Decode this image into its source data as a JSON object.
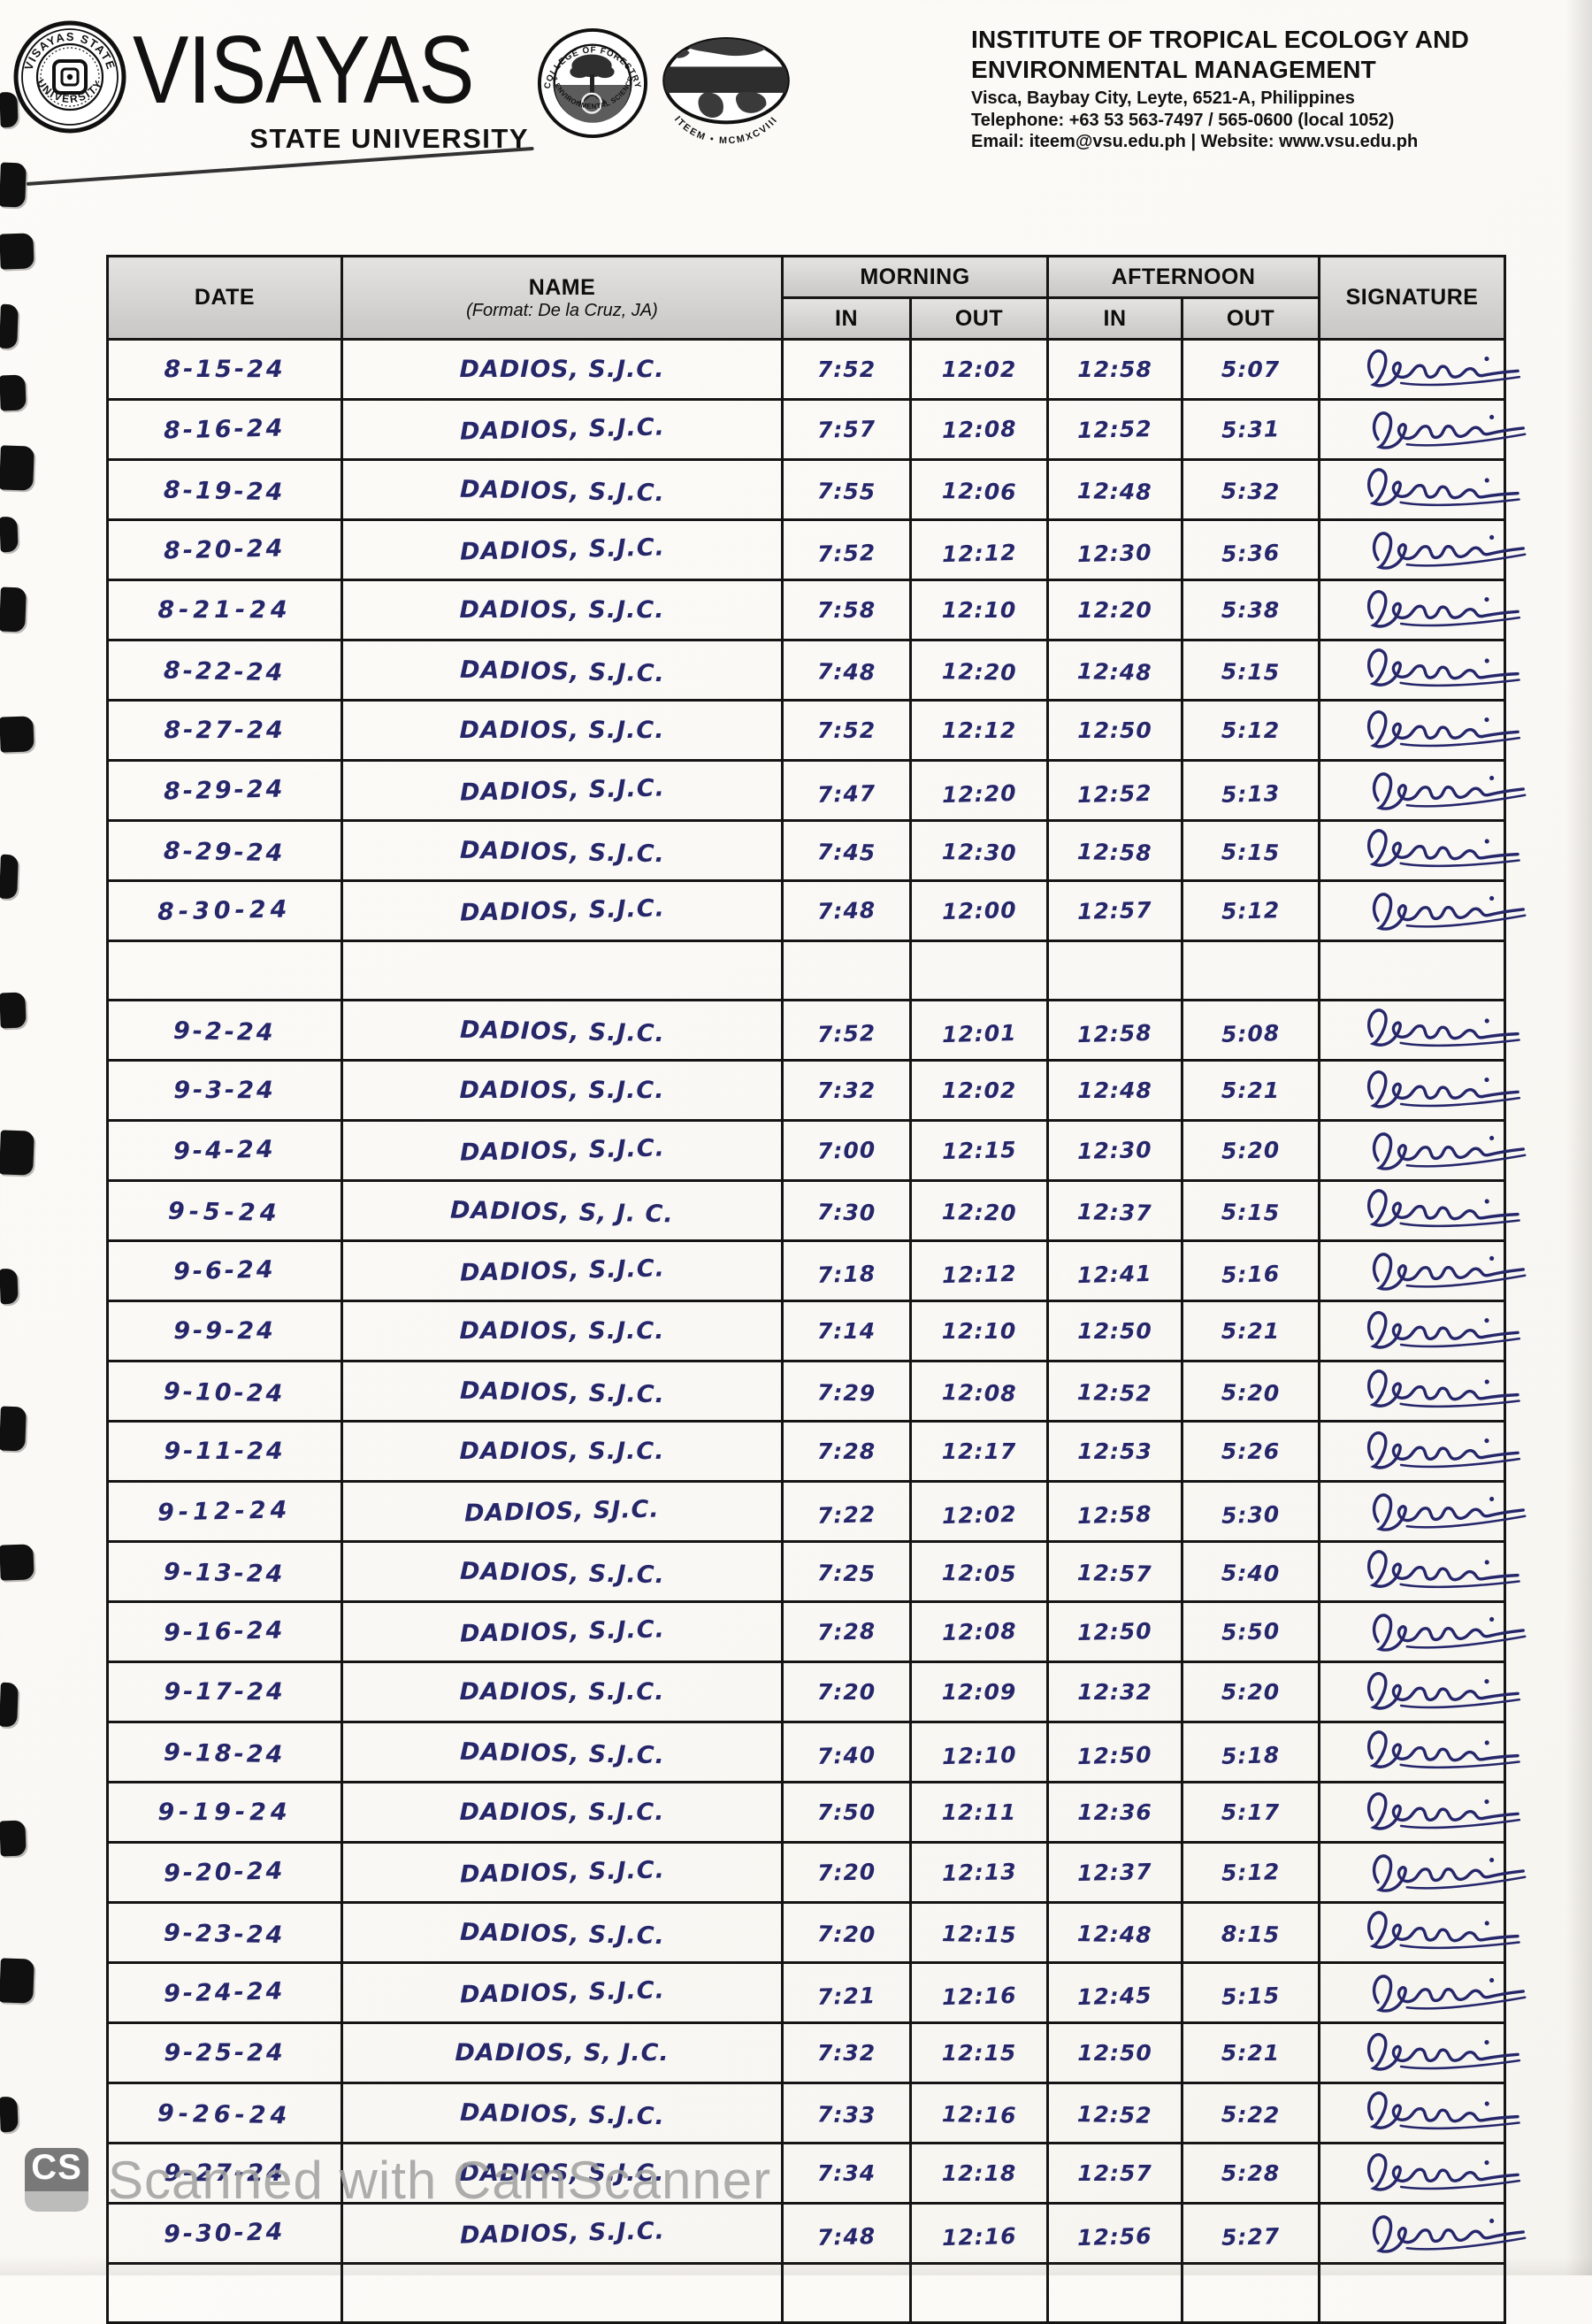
{
  "masthead": {
    "seal_top_text": "VISAYAS STATE",
    "seal_bottom_text": "UNIVERSITY",
    "wordmark_line1": "VISAYAS",
    "wordmark_line2": "STATE UNIVERSITY",
    "forestry_seal_top": "COLLEGE OF FORESTRY",
    "forestry_seal_bottom": "& ENVIRONMENTAL SCIENCE",
    "iteem_seal_caption": "ITEEM • MCMXCVIII",
    "institute_line1": "INSTITUTE OF TROPICAL ECOLOGY AND",
    "institute_line2": "ENVIRONMENTAL MANAGEMENT",
    "address": "Visca, Baybay City, Leyte, 6521-A, Philippines",
    "telephone": "Telephone: +63 53 563-7497 / 565-0600 (local 1052)",
    "email_website": "Email:  iteem@vsu.edu.ph | Website:  www.vsu.edu.ph"
  },
  "table": {
    "headers": {
      "date": "DATE",
      "name": "NAME",
      "name_format": "(Format:  De la Cruz, JA)",
      "morning": "MORNING",
      "afternoon": "AFTERNOON",
      "in": "IN",
      "out": "OUT",
      "signature": "SIGNATURE"
    },
    "rows": [
      {
        "date": "8-15-24",
        "name": "DADIOS, S.J.C.",
        "m_in": "7:52",
        "m_out": "12:02",
        "a_in": "12:58",
        "a_out": "5:07",
        "signed": true
      },
      {
        "date": "8-16-24",
        "name": "DADIOS, S.J.C.",
        "m_in": "7:57",
        "m_out": "12:08",
        "a_in": "12:52",
        "a_out": "5:31",
        "signed": true
      },
      {
        "date": "8-19-24",
        "name": "DADIOS, S.J.C.",
        "m_in": "7:55",
        "m_out": "12:06",
        "a_in": "12:48",
        "a_out": "5:32",
        "signed": true
      },
      {
        "date": "8-20-24",
        "name": "DADIOS, S.J.C.",
        "m_in": "7:52",
        "m_out": "12:12",
        "a_in": "12:30",
        "a_out": "5:36",
        "signed": true
      },
      {
        "date": "8-21-24",
        "name": "DADIOS, S.J.C.",
        "m_in": "7:58",
        "m_out": "12:10",
        "a_in": "12:20",
        "a_out": "5:38",
        "signed": true
      },
      {
        "date": "8-22-24",
        "name": "DADIOS, S.J.C.",
        "m_in": "7:48",
        "m_out": "12:20",
        "a_in": "12:48",
        "a_out": "5:15",
        "signed": true
      },
      {
        "date": "8-27-24",
        "name": "DADIOS, S.J.C.",
        "m_in": "7:52",
        "m_out": "12:12",
        "a_in": "12:50",
        "a_out": "5:12",
        "signed": true
      },
      {
        "date": "8-29-24",
        "name": "DADIOS, S.J.C.",
        "m_in": "7:47",
        "m_out": "12:20",
        "a_in": "12:52",
        "a_out": "5:13",
        "signed": true
      },
      {
        "date": "8-29-24",
        "name": "DADIOS, S.J.C.",
        "m_in": "7:45",
        "m_out": "12:30",
        "a_in": "12:58",
        "a_out": "5:15",
        "signed": true
      },
      {
        "date": "8-30-24",
        "name": "DADIOS, S.J.C.",
        "m_in": "7:48",
        "m_out": "12:00",
        "a_in": "12:57",
        "a_out": "5:12",
        "signed": true
      },
      {
        "date": "",
        "name": "",
        "m_in": "",
        "m_out": "",
        "a_in": "",
        "a_out": "",
        "signed": false
      },
      {
        "date": "9-2-24",
        "name": "DADIOS, S.J.C.",
        "m_in": "7:52",
        "m_out": "12:01",
        "a_in": "12:58",
        "a_out": "5:08",
        "signed": true
      },
      {
        "date": "9-3-24",
        "name": "DADIOS, S.J.C.",
        "m_in": "7:32",
        "m_out": "12:02",
        "a_in": "12:48",
        "a_out": "5:21",
        "signed": true
      },
      {
        "date": "9-4-24",
        "name": "DADIOS, S.J.C.",
        "m_in": "7:00",
        "m_out": "12:15",
        "a_in": "12:30",
        "a_out": "5:20",
        "signed": true
      },
      {
        "date": "9-5-24",
        "name": "DADIOS, S, J. C.",
        "m_in": "7:30",
        "m_out": "12:20",
        "a_in": "12:37",
        "a_out": "5:15",
        "signed": true
      },
      {
        "date": "9-6-24",
        "name": "DADIOS, S.J.C.",
        "m_in": "7:18",
        "m_out": "12:12",
        "a_in": "12:41",
        "a_out": "5:16",
        "signed": true
      },
      {
        "date": "9-9-24",
        "name": "DADIOS, S.J.C.",
        "m_in": "7:14",
        "m_out": "12:10",
        "a_in": "12:50",
        "a_out": "5:21",
        "signed": true
      },
      {
        "date": "9-10-24",
        "name": "DADIOS, S.J.C.",
        "m_in": "7:29",
        "m_out": "12:08",
        "a_in": "12:52",
        "a_out": "5:20",
        "signed": true
      },
      {
        "date": "9-11-24",
        "name": "DADIOS, S.J.C.",
        "m_in": "7:28",
        "m_out": "12:17",
        "a_in": "12:53",
        "a_out": "5:26",
        "signed": true
      },
      {
        "date": "9-12-24",
        "name": "DADIOS, SJ.C.",
        "m_in": "7:22",
        "m_out": "12:02",
        "a_in": "12:58",
        "a_out": "5:30",
        "signed": true
      },
      {
        "date": "9-13-24",
        "name": "DADIOS, S.J.C.",
        "m_in": "7:25",
        "m_out": "12:05",
        "a_in": "12:57",
        "a_out": "5:40",
        "signed": true
      },
      {
        "date": "9-16-24",
        "name": "DADIOS, S.J.C.",
        "m_in": "7:28",
        "m_out": "12:08",
        "a_in": "12:50",
        "a_out": "5:50",
        "signed": true
      },
      {
        "date": "9-17-24",
        "name": "DADIOS, S.J.C.",
        "m_in": "7:20",
        "m_out": "12:09",
        "a_in": "12:32",
        "a_out": "5:20",
        "signed": true
      },
      {
        "date": "9-18-24",
        "name": "DADIOS, S.J.C.",
        "m_in": "7:40",
        "m_out": "12:10",
        "a_in": "12:50",
        "a_out": "5:18",
        "signed": true
      },
      {
        "date": "9-19-24",
        "name": "DADIOS, S.J.C.",
        "m_in": "7:50",
        "m_out": "12:11",
        "a_in": "12:36",
        "a_out": "5:17",
        "signed": true
      },
      {
        "date": "9-20-24",
        "name": "DADIOS, S.J.C.",
        "m_in": "7:20",
        "m_out": "12:13",
        "a_in": "12:37",
        "a_out": "5:12",
        "signed": true
      },
      {
        "date": "9-23-24",
        "name": "DADIOS, S.J.C.",
        "m_in": "7:20",
        "m_out": "12:15",
        "a_in": "12:48",
        "a_out": "8:15",
        "signed": true
      },
      {
        "date": "9-24-24",
        "name": "DADIOS, S.J.C.",
        "m_in": "7:21",
        "m_out": "12:16",
        "a_in": "12:45",
        "a_out": "5:15",
        "signed": true
      },
      {
        "date": "9-25-24",
        "name": "DADIOS, S, J.C.",
        "m_in": "7:32",
        "m_out": "12:15",
        "a_in": "12:50",
        "a_out": "5:21",
        "signed": true
      },
      {
        "date": "9-26-24",
        "name": "DADIOS, S.J.C.",
        "m_in": "7:33",
        "m_out": "12:16",
        "a_in": "12:52",
        "a_out": "5:22",
        "signed": true
      },
      {
        "date": "9-27-24",
        "name": "DADIOS, S.J.C.",
        "m_in": "7:34",
        "m_out": "12:18",
        "a_in": "12:57",
        "a_out": "5:28",
        "signed": true
      },
      {
        "date": "9-30-24",
        "name": "DADIOS, S.J.C.",
        "m_in": "7:48",
        "m_out": "12:16",
        "a_in": "12:56",
        "a_out": "5:27",
        "signed": true
      },
      {
        "date": "",
        "name": "",
        "m_in": "",
        "m_out": "",
        "a_in": "",
        "a_out": "",
        "signed": false
      }
    ]
  },
  "watermark": {
    "logo": "CS",
    "text": "Scanned with CamScanner"
  },
  "colors": {
    "ink": "#26276b",
    "header_bg": "#d4d3d1",
    "paper": "#fbfaf7",
    "watermark_gray": "#a2a2a2"
  }
}
